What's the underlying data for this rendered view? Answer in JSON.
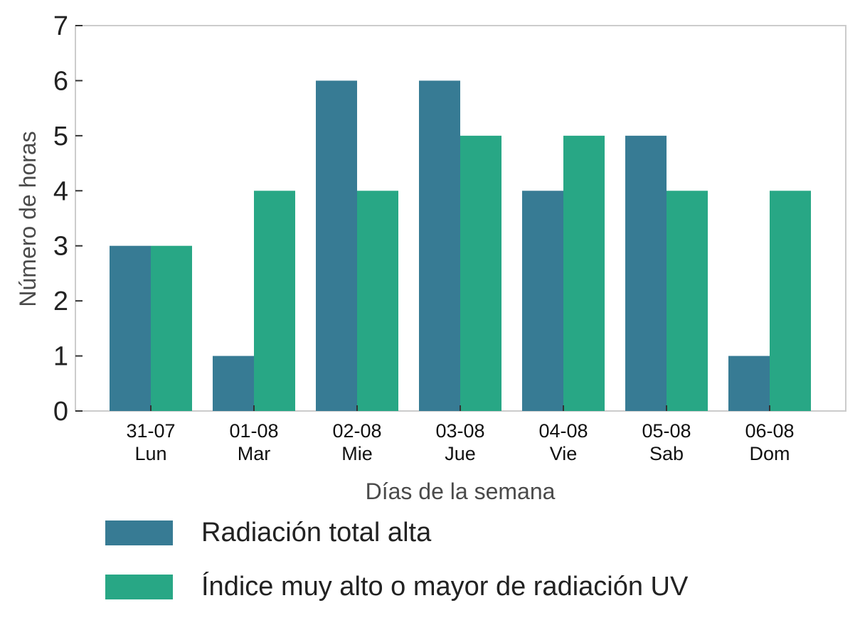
{
  "chart_data": {
    "type": "bar",
    "categories": [
      "31-07\nLun",
      "01-08\nMar",
      "02-08\nMie",
      "03-08\nJue",
      "04-08\nVie",
      "05-08\nSab",
      "06-08\nDom"
    ],
    "category_lines": [
      [
        "31-07",
        "Lun"
      ],
      [
        "01-08",
        "Mar"
      ],
      [
        "02-08",
        "Mie"
      ],
      [
        "03-08",
        "Jue"
      ],
      [
        "04-08",
        "Vie"
      ],
      [
        "05-08",
        "Sab"
      ],
      [
        "06-08",
        "Dom"
      ]
    ],
    "series": [
      {
        "name": "Radiación total alta",
        "color": "#377b94",
        "values": [
          3,
          1,
          6,
          6,
          4,
          5,
          1
        ]
      },
      {
        "name": "Índice muy alto o mayor de radiación UV",
        "color": "#28a785",
        "values": [
          3,
          4,
          4,
          5,
          5,
          4,
          4
        ]
      }
    ],
    "xlabel": "Días de la semana",
    "ylabel": "Número de horas",
    "ylim": [
      0,
      7
    ],
    "yticks": [
      "0",
      "1",
      "2",
      "3",
      "4",
      "5",
      "6",
      "7"
    ],
    "grid": false,
    "legend_position": "bottom"
  }
}
